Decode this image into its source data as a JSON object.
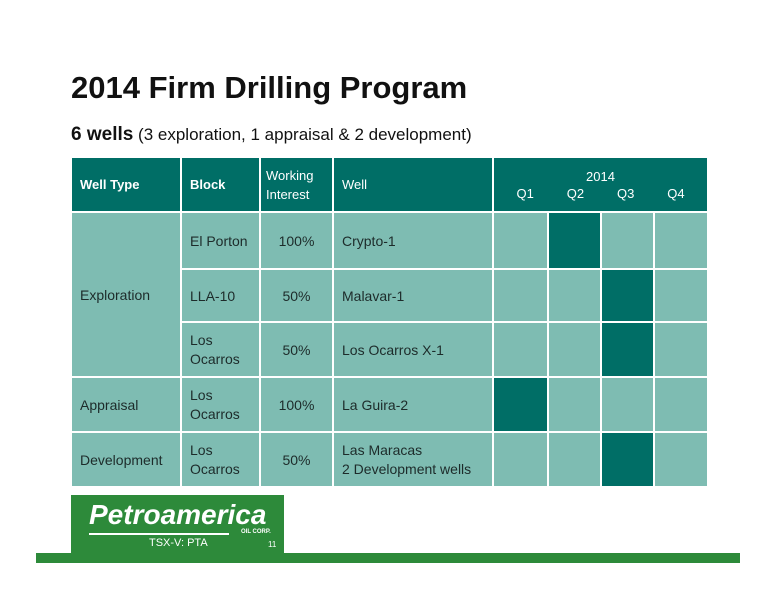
{
  "title": "2014 Firm Drilling Program",
  "subtitle": {
    "bold": "6 wells",
    "rest": " (3 exploration, 1 appraisal & 2 development)"
  },
  "table": {
    "headers": {
      "well_type": "Well Type",
      "block": "Block",
      "wi_line1": "Working",
      "wi_line2": "Interest",
      "well": "Well",
      "year": "2014",
      "q1": "Q1",
      "q2": "Q2",
      "q3": "Q3",
      "q4": "Q4"
    },
    "groups": {
      "exploration": "Exploration",
      "appraisal": "Appraisal",
      "development": "Development"
    },
    "rows": [
      {
        "block": "El Porton",
        "interest": "100%",
        "well": "Crypto-1",
        "active_quarter": "Q2"
      },
      {
        "block": "LLA-10",
        "interest": "50%",
        "well": "Malavar-1",
        "active_quarter": "Q3"
      },
      {
        "block_l1": "Los",
        "block_l2": "Ocarros",
        "interest": "50%",
        "well": "Los Ocarros  X-1",
        "active_quarter": "Q3"
      },
      {
        "block_l1": "Los",
        "block_l2": "Ocarros",
        "interest": "100%",
        "well": "La Guira-2",
        "active_quarter": "Q1"
      },
      {
        "block_l1": "Los",
        "block_l2": "Ocarros",
        "interest": "50%",
        "well_l1": "Las Maracas",
        "well_l2": "2 Development wells",
        "active_quarter": "Q3"
      }
    ]
  },
  "logo": {
    "name": "Petroamerica",
    "sub": "OIL CORP.",
    "ticker": "TSX-V: PTA"
  },
  "page_number": "11",
  "colors": {
    "header": "#006e66",
    "cell": "#7ebcb2",
    "active": "#006e66",
    "brand_green": "#2d8a3a"
  }
}
